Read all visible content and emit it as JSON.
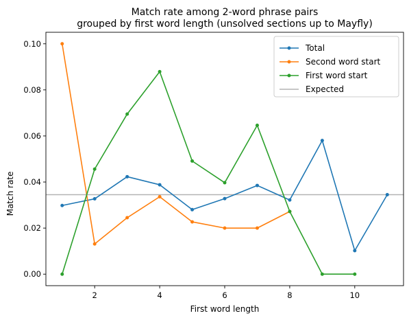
{
  "chart_data": {
    "type": "line",
    "title_lines": [
      "Match rate among 2-word phrase pairs",
      "grouped by first word length (unsolved sections up to Mayfly)"
    ],
    "xlabel": "First word length",
    "ylabel": "Match rate",
    "xlim": [
      0.5,
      11.5
    ],
    "ylim": [
      -0.005,
      0.105
    ],
    "xticks": [
      2,
      4,
      6,
      8,
      10
    ],
    "xtick_labels": [
      "2",
      "4",
      "6",
      "8",
      "10"
    ],
    "yticks": [
      0.0,
      0.02,
      0.04,
      0.06,
      0.08,
      0.1
    ],
    "ytick_labels": [
      "0.00",
      "0.02",
      "0.04",
      "0.06",
      "0.08",
      "0.10"
    ],
    "grid": false,
    "legend_position": "top-right",
    "series": [
      {
        "name": "Total",
        "color": "#1f77b4",
        "marker": true,
        "x": [
          1,
          2,
          3,
          4,
          5,
          6,
          7,
          8,
          9,
          10,
          11
        ],
        "y": [
          0.0298,
          0.0327,
          0.0423,
          0.0388,
          0.028,
          0.0328,
          0.0385,
          0.0322,
          0.058,
          0.0102,
          0.0345
        ]
      },
      {
        "name": "Second word start",
        "color": "#ff7f0e",
        "marker": true,
        "x": [
          1,
          2,
          3,
          4,
          5,
          6,
          7,
          8
        ],
        "y": [
          0.1,
          0.0131,
          0.0245,
          0.0336,
          0.0227,
          0.02,
          0.02,
          0.0272
        ]
      },
      {
        "name": "First word start",
        "color": "#2ca02c",
        "marker": true,
        "x": [
          1,
          2,
          3,
          4,
          5,
          6,
          7,
          8,
          9,
          10
        ],
        "y": [
          0.0,
          0.0456,
          0.0695,
          0.0879,
          0.0491,
          0.0397,
          0.0646,
          0.0272,
          0.0,
          0.0
        ]
      }
    ],
    "reference_line": {
      "name": "Expected",
      "y": 0.0345,
      "color": "#b3b3b3"
    }
  }
}
